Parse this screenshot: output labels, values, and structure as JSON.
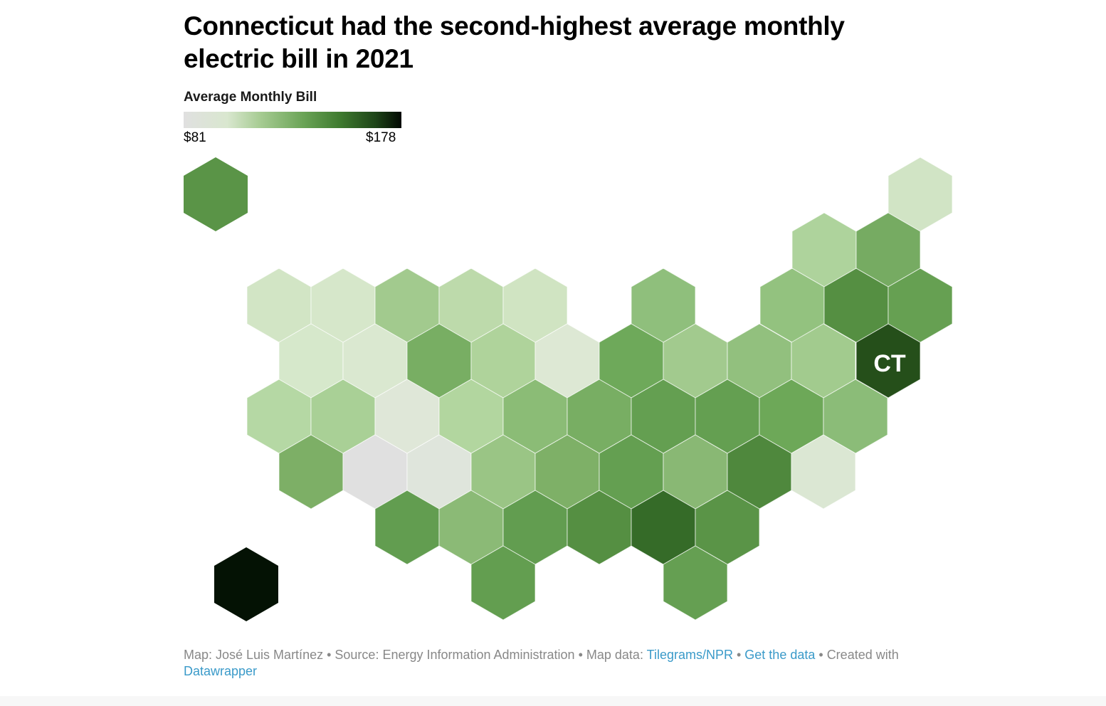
{
  "title": "Connecticut had the second-highest average monthly electric bill in 2021",
  "legend": {
    "title": "Average Monthly Bill",
    "min_label": "$81",
    "max_label": "$178",
    "min": 81,
    "max": 178,
    "colors": [
      "#e0e0e0",
      "#d9e7cf",
      "#a7cc93",
      "#6aa456",
      "#3e7a2f",
      "#1e4518",
      "#020902"
    ]
  },
  "map": {
    "highlight_label": "CT",
    "hex_colors": [
      "#5a9447",
      "#041204",
      "#d1e4c5",
      "#aed39c",
      "#76ab62",
      "#d2e5c5",
      "#d6e7ca",
      "#a2ca8e",
      "#bddaab",
      "#d0e4c2",
      "#8fbf7c",
      "#93c27f",
      "#558f42",
      "#66a052",
      "#d6e8cb",
      "#dae8d0",
      "#78ae63",
      "#afd39b",
      "#dde8d4",
      "#6ea95a",
      "#a2ca8e",
      "#92c07e",
      "#a2cb8e",
      "#254f1a",
      "#b5d8a4",
      "#a9d096",
      "#dfe7d8",
      "#b2d69f",
      "#8bbc76",
      "#78ae63",
      "#649f51",
      "#649f51",
      "#6da858",
      "#8bbc78",
      "#7daf66",
      "#e0e0e0",
      "#dfe5dc",
      "#9ac585",
      "#7eb067",
      "#649f51",
      "#89b874",
      "#4f883d",
      "#dbe7d3",
      "#629d50",
      "#8bba76",
      "#629d50",
      "#558f42",
      "#356b28",
      "#5a9447",
      "#639e50",
      "#659f52"
    ]
  },
  "footer": {
    "map_credit": "Map: José Luis Martínez",
    "sep": " • ",
    "source": "Source: Energy Information Administration",
    "map_data_prefix": "Map data: ",
    "map_data_link": "Tilegrams/NPR",
    "get_data_link": "Get the data",
    "created_prefix": "Created with ",
    "datawrapper_link": "Datawrapper"
  }
}
